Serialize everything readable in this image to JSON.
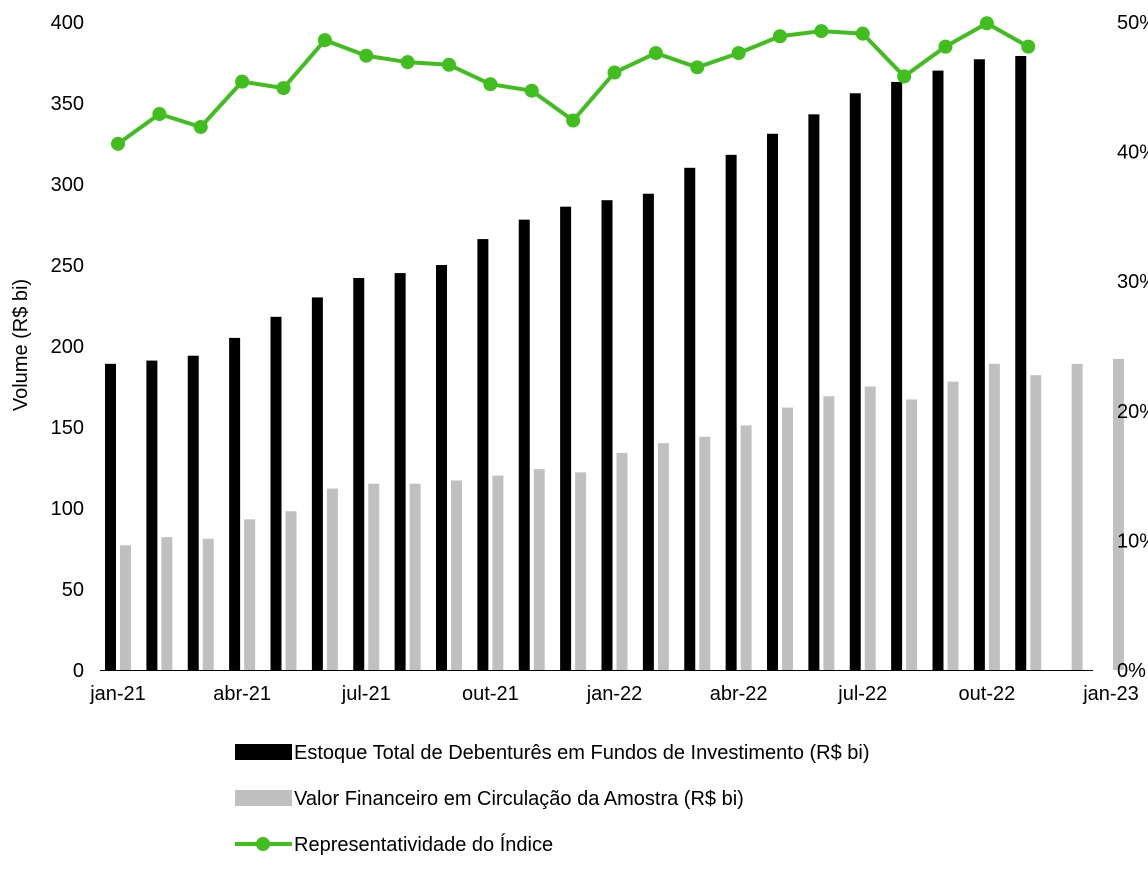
{
  "chart_data": {
    "type": "bar",
    "title": "",
    "ylabel": "Volume (R$ bi)",
    "xlabel": "",
    "ylim": [
      0,
      400
    ],
    "y2lim": [
      0,
      50
    ],
    "yticks": [
      "0",
      "50",
      "100",
      "150",
      "200",
      "250",
      "300",
      "350",
      "400"
    ],
    "y2ticks": [
      "0%",
      "10%",
      "20%",
      "30%",
      "40%",
      "50%"
    ],
    "xticks": [
      "jan-21",
      "abr-21",
      "jul-21",
      "out-21",
      "jan-22",
      "abr-22",
      "jul-22",
      "out-22",
      "jan-23"
    ],
    "categories": [
      "jan-21",
      "fev-21",
      "mar-21",
      "abr-21",
      "mai-21",
      "jun-21",
      "jul-21",
      "ago-21",
      "set-21",
      "out-21",
      "nov-21",
      "dez-21",
      "jan-22",
      "fev-22",
      "mar-22",
      "abr-22",
      "mai-22",
      "jun-22",
      "jul-22",
      "ago-22",
      "set-22",
      "out-22",
      "nov-22",
      "dez-22",
      "jan-23"
    ],
    "series": [
      {
        "name": "Estoque Total de Debenturês em Fundos de Investimento (R$ bi)",
        "kind": "bar",
        "color": "#000000",
        "values": [
          189,
          191,
          194,
          205,
          218,
          230,
          242,
          245,
          250,
          266,
          278,
          286,
          290,
          294,
          310,
          318,
          331,
          343,
          356,
          363,
          370,
          377,
          379,
          null,
          null
        ]
      },
      {
        "name": "Valor Financeiro em Circulação da Amostra (R$ bi)",
        "kind": "bar",
        "color": "#c0c0c0",
        "values": [
          77,
          82,
          81,
          93,
          98,
          112,
          115,
          115,
          117,
          120,
          124,
          122,
          134,
          140,
          144,
          151,
          162,
          169,
          175,
          167,
          178,
          189,
          182,
          189,
          192
        ]
      },
      {
        "name": "Representatividade do Índice",
        "kind": "line",
        "axis": "right",
        "unit": "%",
        "color": "#3fbe1d",
        "values": [
          40.6,
          42.9,
          41.9,
          45.4,
          44.9,
          48.6,
          47.4,
          46.9,
          46.7,
          45.2,
          44.7,
          42.4,
          46.1,
          47.6,
          46.5,
          47.6,
          48.9,
          49.3,
          49.1,
          45.8,
          48.1,
          49.9,
          48.1,
          null,
          null
        ]
      }
    ],
    "legend_position": "bottom",
    "grid": false
  }
}
